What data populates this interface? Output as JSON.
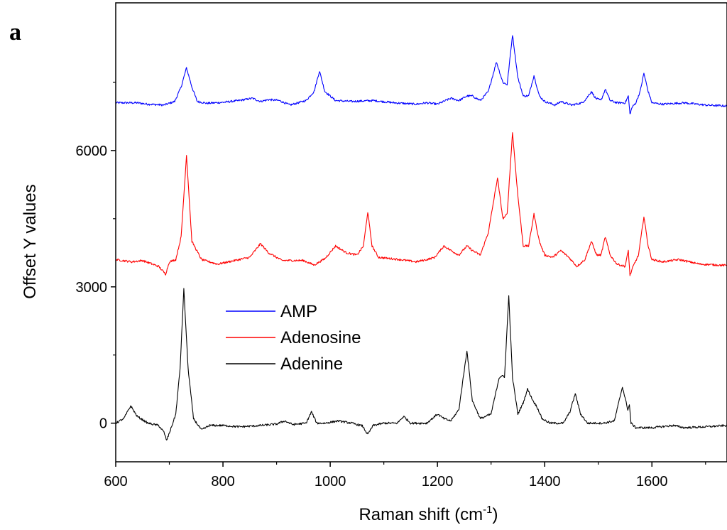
{
  "figure": {
    "panel_label": "a"
  },
  "chart_data": {
    "type": "line",
    "title": "",
    "xlabel_main": "Raman shift (cm",
    "xlabel_sup": "-1",
    "xlabel_close": ")",
    "ylabel": "Offset Y values",
    "xlim": [
      600,
      1740
    ],
    "ylim": [
      -850,
      9250
    ],
    "x_ticks": [
      600,
      800,
      1000,
      1200,
      1400,
      1600
    ],
    "x_tick_labels": [
      "600",
      "800",
      "1000",
      "1200",
      "1400",
      "1600"
    ],
    "y_ticks": [
      0,
      3000,
      6000
    ],
    "y_tick_labels": [
      "0",
      "3000",
      "6000"
    ],
    "grid": false,
    "legend_position": "center-left",
    "series": [
      {
        "name": "AMP",
        "color": "#0000ff",
        "points": [
          [
            600,
            7050
          ],
          [
            640,
            7050
          ],
          [
            660,
            7020
          ],
          [
            690,
            7000
          ],
          [
            710,
            7080
          ],
          [
            722,
            7400
          ],
          [
            732,
            7820
          ],
          [
            742,
            7400
          ],
          [
            752,
            7080
          ],
          [
            770,
            7040
          ],
          [
            800,
            7060
          ],
          [
            830,
            7100
          ],
          [
            855,
            7150
          ],
          [
            870,
            7080
          ],
          [
            885,
            7120
          ],
          [
            905,
            7100
          ],
          [
            925,
            7000
          ],
          [
            955,
            7100
          ],
          [
            970,
            7300
          ],
          [
            980,
            7750
          ],
          [
            990,
            7300
          ],
          [
            1000,
            7200
          ],
          [
            1010,
            7100
          ],
          [
            1040,
            7080
          ],
          [
            1080,
            7100
          ],
          [
            1120,
            7050
          ],
          [
            1160,
            7020
          ],
          [
            1180,
            7050
          ],
          [
            1200,
            7020
          ],
          [
            1225,
            7150
          ],
          [
            1240,
            7100
          ],
          [
            1255,
            7200
          ],
          [
            1265,
            7200
          ],
          [
            1280,
            7100
          ],
          [
            1295,
            7300
          ],
          [
            1310,
            7950
          ],
          [
            1322,
            7500
          ],
          [
            1330,
            7450
          ],
          [
            1340,
            8550
          ],
          [
            1350,
            7600
          ],
          [
            1360,
            7200
          ],
          [
            1370,
            7200
          ],
          [
            1380,
            7650
          ],
          [
            1390,
            7200
          ],
          [
            1400,
            7080
          ],
          [
            1420,
            7000
          ],
          [
            1430,
            7080
          ],
          [
            1450,
            7000
          ],
          [
            1470,
            7050
          ],
          [
            1478,
            7150
          ],
          [
            1487,
            7300
          ],
          [
            1495,
            7150
          ],
          [
            1505,
            7100
          ],
          [
            1513,
            7350
          ],
          [
            1522,
            7100
          ],
          [
            1535,
            7050
          ],
          [
            1550,
            7050
          ],
          [
            1556,
            7200
          ],
          [
            1559,
            6800
          ],
          [
            1563,
            6950
          ],
          [
            1570,
            7050
          ],
          [
            1578,
            7300
          ],
          [
            1585,
            7700
          ],
          [
            1593,
            7300
          ],
          [
            1600,
            7050
          ],
          [
            1620,
            7020
          ],
          [
            1660,
            7050
          ],
          [
            1700,
            7000
          ],
          [
            1740,
            6980
          ]
        ]
      },
      {
        "name": "Adenosine",
        "color": "#ff0000",
        "points": [
          [
            600,
            3600
          ],
          [
            630,
            3550
          ],
          [
            650,
            3580
          ],
          [
            680,
            3450
          ],
          [
            693,
            3280
          ],
          [
            700,
            3550
          ],
          [
            712,
            3600
          ],
          [
            722,
            4100
          ],
          [
            732,
            5900
          ],
          [
            742,
            4000
          ],
          [
            760,
            3600
          ],
          [
            790,
            3500
          ],
          [
            810,
            3550
          ],
          [
            850,
            3650
          ],
          [
            870,
            3950
          ],
          [
            885,
            3750
          ],
          [
            910,
            3580
          ],
          [
            950,
            3580
          ],
          [
            970,
            3480
          ],
          [
            990,
            3620
          ],
          [
            1010,
            3900
          ],
          [
            1030,
            3750
          ],
          [
            1050,
            3700
          ],
          [
            1062,
            3900
          ],
          [
            1070,
            4650
          ],
          [
            1078,
            3900
          ],
          [
            1090,
            3650
          ],
          [
            1130,
            3600
          ],
          [
            1160,
            3550
          ],
          [
            1180,
            3600
          ],
          [
            1195,
            3650
          ],
          [
            1212,
            3900
          ],
          [
            1225,
            3800
          ],
          [
            1240,
            3700
          ],
          [
            1255,
            3900
          ],
          [
            1265,
            3800
          ],
          [
            1280,
            3700
          ],
          [
            1295,
            4200
          ],
          [
            1312,
            5400
          ],
          [
            1322,
            4500
          ],
          [
            1330,
            4600
          ],
          [
            1340,
            6400
          ],
          [
            1350,
            5000
          ],
          [
            1360,
            3900
          ],
          [
            1370,
            3900
          ],
          [
            1380,
            4600
          ],
          [
            1390,
            4000
          ],
          [
            1400,
            3700
          ],
          [
            1415,
            3650
          ],
          [
            1430,
            3800
          ],
          [
            1445,
            3650
          ],
          [
            1460,
            3450
          ],
          [
            1475,
            3600
          ],
          [
            1487,
            4000
          ],
          [
            1497,
            3700
          ],
          [
            1505,
            3700
          ],
          [
            1513,
            4100
          ],
          [
            1522,
            3700
          ],
          [
            1535,
            3500
          ],
          [
            1550,
            3450
          ],
          [
            1556,
            3800
          ],
          [
            1559,
            3250
          ],
          [
            1565,
            3450
          ],
          [
            1575,
            3700
          ],
          [
            1585,
            4550
          ],
          [
            1593,
            3900
          ],
          [
            1600,
            3600
          ],
          [
            1620,
            3550
          ],
          [
            1650,
            3600
          ],
          [
            1690,
            3500
          ],
          [
            1740,
            3470
          ]
        ]
      },
      {
        "name": "Adenine",
        "color": "#000000",
        "points": [
          [
            600,
            0
          ],
          [
            615,
            100
          ],
          [
            628,
            380
          ],
          [
            640,
            150
          ],
          [
            660,
            0
          ],
          [
            680,
            -50
          ],
          [
            690,
            -200
          ],
          [
            695,
            -380
          ],
          [
            705,
            -50
          ],
          [
            712,
            200
          ],
          [
            720,
            1200
          ],
          [
            727,
            2950
          ],
          [
            735,
            1200
          ],
          [
            745,
            100
          ],
          [
            760,
            -150
          ],
          [
            775,
            -50
          ],
          [
            800,
            -50
          ],
          [
            830,
            -80
          ],
          [
            860,
            -60
          ],
          [
            900,
            -20
          ],
          [
            915,
            50
          ],
          [
            930,
            -30
          ],
          [
            955,
            0
          ],
          [
            965,
            250
          ],
          [
            975,
            0
          ],
          [
            990,
            0
          ],
          [
            1015,
            50
          ],
          [
            1040,
            0
          ],
          [
            1060,
            -60
          ],
          [
            1070,
            -250
          ],
          [
            1080,
            -50
          ],
          [
            1100,
            0
          ],
          [
            1125,
            0
          ],
          [
            1137,
            150
          ],
          [
            1150,
            0
          ],
          [
            1180,
            0
          ],
          [
            1200,
            200
          ],
          [
            1212,
            100
          ],
          [
            1225,
            50
          ],
          [
            1240,
            300
          ],
          [
            1255,
            1600
          ],
          [
            1265,
            500
          ],
          [
            1280,
            100
          ],
          [
            1300,
            200
          ],
          [
            1315,
            1000
          ],
          [
            1320,
            1050
          ],
          [
            1325,
            1000
          ],
          [
            1333,
            2800
          ],
          [
            1340,
            1000
          ],
          [
            1350,
            200
          ],
          [
            1360,
            450
          ],
          [
            1368,
            750
          ],
          [
            1378,
            500
          ],
          [
            1386,
            350
          ],
          [
            1395,
            100
          ],
          [
            1410,
            0
          ],
          [
            1435,
            0
          ],
          [
            1447,
            250
          ],
          [
            1457,
            650
          ],
          [
            1467,
            200
          ],
          [
            1480,
            0
          ],
          [
            1510,
            0
          ],
          [
            1530,
            50
          ],
          [
            1545,
            800
          ],
          [
            1555,
            300
          ],
          [
            1558,
            400
          ],
          [
            1561,
            0
          ],
          [
            1570,
            -100
          ],
          [
            1600,
            -100
          ],
          [
            1640,
            -50
          ],
          [
            1660,
            -100
          ],
          [
            1700,
            -80
          ],
          [
            1740,
            -50
          ]
        ]
      }
    ]
  }
}
